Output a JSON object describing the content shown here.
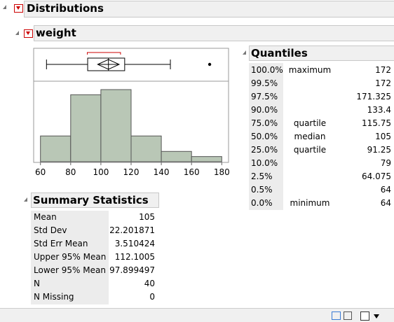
{
  "header": {
    "title": "Distributions"
  },
  "variable": {
    "title": "weight"
  },
  "chart_data": {
    "type": "histogram",
    "bins": [
      60,
      80,
      100,
      120,
      140,
      160,
      180
    ],
    "counts": [
      5,
      13,
      14,
      5,
      2,
      1
    ],
    "color": "#b9c7b6",
    "xlim": [
      55.5,
      184.5
    ],
    "xticks": [
      60,
      80,
      100,
      120,
      140,
      160,
      180
    ],
    "box": {
      "whisker_low": 64,
      "whisker_high": 146,
      "outliers": [
        172
      ],
      "shortest_half": [
        91,
        113
      ]
    }
  },
  "quantiles": {
    "title": "Quantiles",
    "rows": [
      {
        "percent": "100.0%",
        "label": "maximum",
        "value": 172
      },
      {
        "percent": "99.5%",
        "value": 172
      },
      {
        "percent": "97.5%",
        "value": 171.325
      },
      {
        "percent": "90.0%",
        "value": 133.4
      },
      {
        "percent": "75.0%",
        "label": "quartile",
        "value": 115.75
      },
      {
        "percent": "50.0%",
        "label": "median",
        "value": 105
      },
      {
        "percent": "25.0%",
        "label": "quartile",
        "value": 91.25
      },
      {
        "percent": "10.0%",
        "value": 79
      },
      {
        "percent": "2.5%",
        "value": 64.075
      },
      {
        "percent": "0.5%",
        "value": 64
      },
      {
        "percent": "0.0%",
        "label": "minimum",
        "value": 64
      }
    ]
  },
  "summary": {
    "title": "Summary Statistics",
    "rows": [
      {
        "name": "Mean",
        "value": 105
      },
      {
        "name": "Std Dev",
        "value": 22.201871
      },
      {
        "name": "Std Err Mean",
        "value": 3.510424
      },
      {
        "name": "Upper 95% Mean",
        "value": 112.1005
      },
      {
        "name": "Lower 95% Mean",
        "value": 97.899497
      },
      {
        "name": "N",
        "value": 40
      },
      {
        "name": "N Missing",
        "value": 0
      }
    ]
  }
}
